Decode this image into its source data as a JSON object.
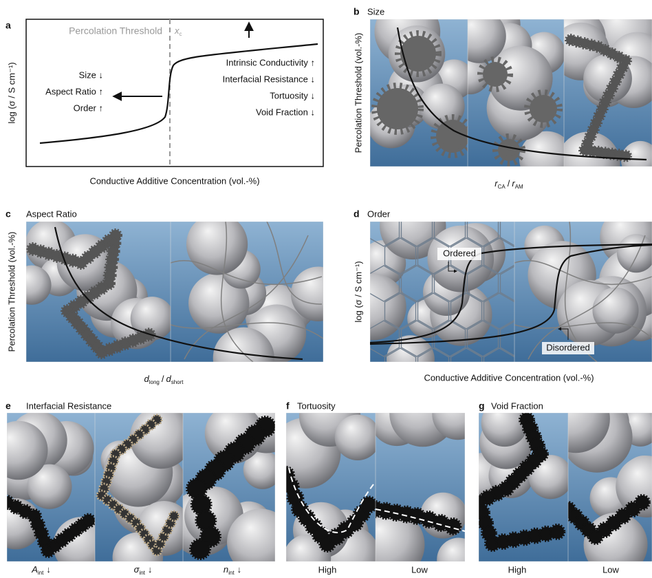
{
  "panels": {
    "a": {
      "letter": "a",
      "threshold_label": "Percolation Threshold",
      "threshold_symbol": "x",
      "threshold_subscript": "c",
      "left_factors": [
        "Size ↓",
        "Aspect Ratio ↑",
        "Order ↑"
      ],
      "right_factors": [
        "Intrinsic Conductivity ↑",
        "Interfacial Resistance ↓",
        "Tortuosity ↓",
        "Void Fraction ↓"
      ],
      "y_label": "log (σ / S cm⁻¹)",
      "x_label": "Conductive Additive Concentration (vol.-%)"
    },
    "b": {
      "letter": "b",
      "title": "Size",
      "y_label": "Percolation Threshold (vol.-%)",
      "x_label": {
        "num": "r",
        "num_sub": "CA",
        "sep": "/",
        "den": "r",
        "den_sub": "AM"
      }
    },
    "c": {
      "letter": "c",
      "title": "Aspect Ratio",
      "y_label": "Percolation Threshold (vol.-%)",
      "x_label": {
        "num": "d",
        "num_sub": "long",
        "sep": "/",
        "den": "d",
        "den_sub": "short"
      }
    },
    "d": {
      "letter": "d",
      "title": "Order",
      "y_label": "log (σ / S cm⁻¹)",
      "x_label": "Conductive Additive Concentration (vol.-%)",
      "annotations": [
        "Ordered",
        "Disordered"
      ]
    },
    "e": {
      "letter": "e",
      "title": "Interfacial Resistance",
      "labels": [
        {
          "symbol": "A",
          "subscript": "int",
          "arrow": "↓"
        },
        {
          "symbol": "σ",
          "subscript": "int",
          "arrow": "↓"
        },
        {
          "symbol": "n",
          "subscript": "int",
          "arrow": "↓"
        }
      ]
    },
    "f": {
      "letter": "f",
      "title": "Tortuosity",
      "labels": [
        "High",
        "Low"
      ]
    },
    "g": {
      "letter": "g",
      "title": "Void Fraction",
      "labels": [
        "High",
        "Low"
      ]
    }
  }
}
